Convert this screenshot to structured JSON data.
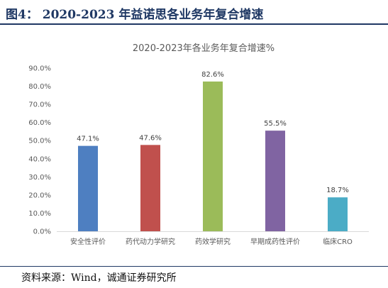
{
  "header": {
    "figure_title": "图4：  2020-2023 年益诺思各业务年复合增速"
  },
  "footer": {
    "source": "资料来源：Wind，诚通证券研究所"
  },
  "chart_data": {
    "type": "bar",
    "title": "2020-2023年各业务年复合增速%",
    "categories": [
      "安全性评价",
      "药代动力学研究",
      "药效学研究",
      "早期成药性评价",
      "临床CRO"
    ],
    "values": [
      47.1,
      47.6,
      82.6,
      55.5,
      18.7
    ],
    "data_labels": [
      "47.1%",
      "47.6%",
      "82.6%",
      "55.5%",
      "18.7%"
    ],
    "colors": [
      "#4e7fc1",
      "#c0504d",
      "#9bbb59",
      "#8064a2",
      "#4bacc6"
    ],
    "ylim": [
      0,
      90
    ],
    "yticks": [
      0,
      10,
      20,
      30,
      40,
      50,
      60,
      70,
      80,
      90
    ],
    "ytick_labels": [
      "0.0%",
      "10.0%",
      "20.0%",
      "30.0%",
      "40.0%",
      "50.0%",
      "60.0%",
      "70.0%",
      "80.0%",
      "90.0%"
    ],
    "xlabel": "",
    "ylabel": "",
    "grid": false,
    "legend": "none"
  }
}
